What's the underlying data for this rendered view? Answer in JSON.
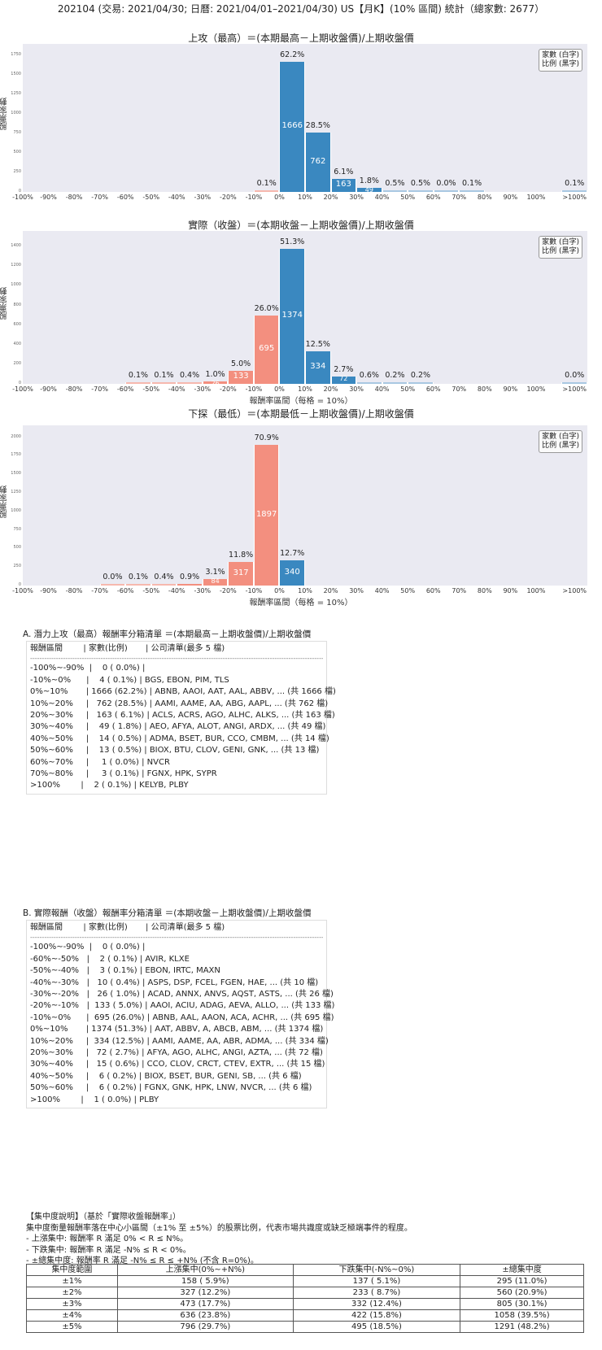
{
  "page_title": "202104 (交易: 2021/04/30; 日曆: 2021/04/01–2021/04/30) US【月K】(10% 區間) 統計（總家數: 2677）",
  "common": {
    "ylabel": "股票家數",
    "xlabel": "報酬率區間（每格 = 10%）",
    "legend_line1": "家數 (白字)",
    "legend_line2": "比例 (黑字)",
    "xticks": [
      "-100%",
      "-90%",
      "-80%",
      "-70%",
      "-60%",
      "-50%",
      "-40%",
      "-30%",
      "-20%",
      "-10%",
      "0%",
      "10%",
      "20%",
      "30%",
      "40%",
      "50%",
      "60%",
      "70%",
      "80%",
      "90%",
      "100%",
      ">100%"
    ],
    "colors": {
      "positive": "#3a88c0",
      "negative": "#f38f7f",
      "plot_bg": "#eaeaf2"
    }
  },
  "chart_data": [
    {
      "type": "bar",
      "title": "上攻（最高）＝(本期最高－上期收盤價)/上期收盤價",
      "xlabel": "報酬率區間（每格 = 10%）",
      "ylabel": "股票家數",
      "ylim": [
        0,
        1900
      ],
      "yticks": [
        "0",
        "250",
        "500",
        "750",
        "1000",
        "1250",
        "1500",
        "1750"
      ],
      "categories": [
        "-10%~0%",
        "0%~10%",
        "10%~20%",
        "20%~30%",
        "30%~40%",
        "40%~50%",
        "50%~60%",
        "60%~70%",
        "70%~80%",
        ">100%"
      ],
      "bin_index": [
        9,
        10,
        11,
        12,
        13,
        14,
        15,
        16,
        17,
        21
      ],
      "values": [
        4,
        1666,
        762,
        163,
        49,
        14,
        13,
        1,
        3,
        2
      ],
      "pct_labels": [
        "0.1%",
        "62.2%",
        "28.5%",
        "6.1%",
        "1.8%",
        "0.5%",
        "0.5%",
        "0.0%",
        "0.1%",
        "0.1%"
      ],
      "count_labels": [
        "",
        "1666",
        "762",
        "163",
        "49",
        "",
        "",
        "",
        "",
        ""
      ],
      "legend": [
        "家數 (白字)",
        "比例 (黑字)"
      ]
    },
    {
      "type": "bar",
      "title": "實際（收盤）＝(本期收盤－上期收盤價)/上期收盤價",
      "xlabel": "報酬率區間（每格 = 10%）",
      "ylabel": "股票家數",
      "ylim": [
        0,
        1560
      ],
      "yticks": [
        "0",
        "200",
        "400",
        "600",
        "800",
        "1000",
        "1200",
        "1400"
      ],
      "categories": [
        "-60%~-50%",
        "-50%~-40%",
        "-40%~-30%",
        "-30%~-20%",
        "-20%~-10%",
        "-10%~0%",
        "0%~10%",
        "10%~20%",
        "20%~30%",
        "30%~40%",
        "40%~50%",
        "50%~60%",
        ">100%"
      ],
      "bin_index": [
        4,
        5,
        6,
        7,
        8,
        9,
        10,
        11,
        12,
        13,
        14,
        15,
        21
      ],
      "values": [
        2,
        3,
        10,
        26,
        133,
        695,
        1374,
        334,
        72,
        15,
        6,
        6,
        1
      ],
      "pct_labels": [
        "0.1%",
        "0.1%",
        "0.4%",
        "1.0%",
        "5.0%",
        "26.0%",
        "51.3%",
        "12.5%",
        "2.7%",
        "0.6%",
        "0.2%",
        "0.2%",
        "0.0%"
      ],
      "count_labels": [
        "",
        "",
        "",
        "26",
        "133",
        "695",
        "1374",
        "334",
        "72",
        "",
        "",
        "",
        ""
      ],
      "legend": [
        "家數 (白字)",
        "比例 (黑字)"
      ]
    },
    {
      "type": "bar",
      "title": "下探（最低）＝(本期最低－上期收盤價)/上期收盤價",
      "xlabel": "報酬率區間（每格 = 10%）",
      "ylabel": "股票家數",
      "ylim": [
        0,
        2160
      ],
      "yticks": [
        "0",
        "250",
        "500",
        "750",
        "1000",
        "1250",
        "1500",
        "1750",
        "2000"
      ],
      "categories": [
        "-70%~-60%",
        "-60%~-50%",
        "-50%~-40%",
        "-40%~-30%",
        "-30%~-20%",
        "-20%~-10%",
        "-10%~0%",
        "0%~10%"
      ],
      "bin_index": [
        3,
        4,
        5,
        6,
        7,
        8,
        9,
        10
      ],
      "values": [
        1,
        3,
        11,
        24,
        84,
        317,
        1897,
        340
      ],
      "pct_labels": [
        "0.0%",
        "0.1%",
        "0.4%",
        "0.9%",
        "3.1%",
        "11.8%",
        "70.9%",
        "12.7%"
      ],
      "count_labels": [
        "",
        "",
        "",
        "",
        "84",
        "317",
        "1897",
        "340"
      ],
      "legend": [
        "家數 (白字)",
        "比例 (黑字)"
      ]
    }
  ],
  "list_a": {
    "title": "A. 潛力上攻（最高）報酬率分箱清單 ＝(本期最高－上期收盤價)/上期收盤價",
    "header": "報酬區間        | 家數(比例)       | 公司清單(最多 5 檔)",
    "divider": "--------------------------------------------------------------------------------------------------------------------------------------------------",
    "rows": [
      "-100%~-90%  |    0 ( 0.0%) |",
      "-10%~0%      |    4 ( 0.1%) | BGS, EBON, PIM, TLS",
      "0%~10%       | 1666 (62.2%) | ABNB, AAOI, AAT, AAL, ABBV, ... (共 1666 檔)",
      "10%~20%     |   762 (28.5%) | AAMI, AAME, AA, ABG, AAPL, ... (共 762 檔)",
      "20%~30%     |   163 ( 6.1%) | ACLS, ACRS, AGO, ALHC, ALKS, ... (共 163 檔)",
      "30%~40%     |    49 ( 1.8%) | AEO, AFYA, ALOT, ANGI, ARDX, ... (共 49 檔)",
      "40%~50%     |    14 ( 0.5%) | ADMA, BSET, BUR, CCO, CMBM, ... (共 14 檔)",
      "50%~60%     |    13 ( 0.5%) | BIOX, BTU, CLOV, GENI, GNK, ... (共 13 檔)",
      "60%~70%     |     1 ( 0.0%) | NVCR",
      "70%~80%     |     3 ( 0.1%) | FGNX, HPK, SYPR",
      ">100%        |    2 ( 0.1%) | KELYB, PLBY"
    ]
  },
  "list_b": {
    "title": "B. 實際報酬（收盤）報酬率分箱清單 ＝(本期收盤－上期收盤價)/上期收盤價",
    "header": "報酬區間        | 家數(比例)       | 公司清單(最多 5 檔)",
    "divider": "--------------------------------------------------------------------------------------------------------------------------------------------------",
    "rows": [
      "-100%~-90%  |    0 ( 0.0%) |",
      "-60%~-50%   |    2 ( 0.1%) | AVIR, KLXE",
      "-50%~-40%   |    3 ( 0.1%) | EBON, IRTC, MAXN",
      "-40%~-30%   |   10 ( 0.4%) | ASPS, DSP, FCEL, FGEN, HAE, ... (共 10 檔)",
      "-30%~-20%   |   26 ( 1.0%) | ACAD, ANNX, ANVS, AQST, ASTS, ... (共 26 檔)",
      "-20%~-10%   |  133 ( 5.0%) | AAOI, ACIU, ADAG, AEVA, ALLO, ... (共 133 檔)",
      "-10%~0%      |  695 (26.0%) | ABNB, AAL, AAON, ACA, ACHR, ... (共 695 檔)",
      "0%~10%       | 1374 (51.3%) | AAT, ABBV, A, ABCB, ABM, ... (共 1374 檔)",
      "10%~20%     |  334 (12.5%) | AAMI, AAME, AA, ABR, ADMA, ... (共 334 檔)",
      "20%~30%     |   72 ( 2.7%) | AFYA, AGO, ALHC, ANGI, AZTA, ... (共 72 檔)",
      "30%~40%     |   15 ( 0.6%) | CCO, CLOV, CRCT, CTEV, EXTR, ... (共 15 檔)",
      "40%~50%     |    6 ( 0.2%) | BIOX, BSET, BUR, GENI, SB, ... (共 6 檔)",
      "50%~60%     |    6 ( 0.2%) | FGNX, GNK, HPK, LNW, NVCR, ... (共 6 檔)",
      ">100%        |    1 ( 0.0%) | PLBY"
    ]
  },
  "concentration": {
    "heading": "【集中度說明】（基於「實際收盤報酬率」）",
    "description": "集中度衡量報酬率落在中心小區間（±1% 至 ±5%）的股票比例，代表市場共識度或缺乏極端事件的程度。",
    "bullets": [
      " - 上漲集中: 報酬率 R 滿足 0% < R ≤ N%。",
      " - 下跌集中: 報酬率 R 滿足 -N% ≤ R < 0%。",
      " - ±總集中度: 報酬率 R 滿足 -N% ≤ R ≤ +N% (不含 R=0%)。"
    ],
    "columns": [
      "集中度範圍",
      "上漲集中(0%~+N%)",
      "下跌集中(-N%~0%)",
      "±總集中度"
    ],
    "rows": [
      [
        "±1%",
        "158 ( 5.9%)",
        "137 ( 5.1%)",
        "295 (11.0%)"
      ],
      [
        "±2%",
        "327 (12.2%)",
        "233 ( 8.7%)",
        "560 (20.9%)"
      ],
      [
        "±3%",
        "473 (17.7%)",
        "332 (12.4%)",
        "805 (30.1%)"
      ],
      [
        "±4%",
        "636 (23.8%)",
        "422 (15.8%)",
        "1058 (39.5%)"
      ],
      [
        "±5%",
        "796 (29.7%)",
        "495 (18.5%)",
        "1291 (48.2%)"
      ]
    ]
  }
}
